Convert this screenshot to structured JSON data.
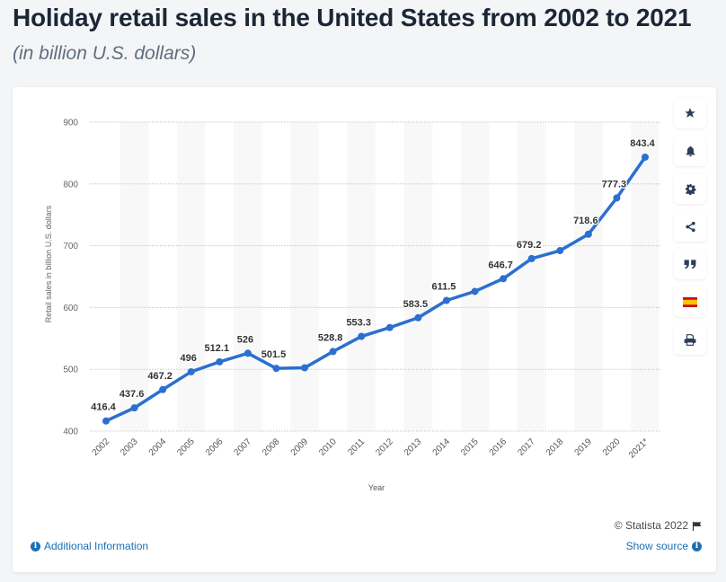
{
  "header": {
    "title": "Holiday retail sales in the United States from 2002 to 2021",
    "subtitle": "(in billion U.S. dollars)"
  },
  "sidebar": {
    "buttons": [
      {
        "icon": "star-icon",
        "label": "Favorite"
      },
      {
        "icon": "bell-icon",
        "label": "Notifications"
      },
      {
        "icon": "gear-icon",
        "label": "Settings"
      },
      {
        "icon": "share-icon",
        "label": "Share"
      },
      {
        "icon": "quote-icon",
        "label": "Cite"
      },
      {
        "icon": "spain-flag-icon",
        "label": "Language"
      },
      {
        "icon": "print-icon",
        "label": "Print"
      }
    ]
  },
  "footer": {
    "copyright": "© Statista 2022",
    "additional_info": "Additional Information",
    "show_source": "Show source"
  },
  "colors": {
    "line": "#2b6fd0",
    "link": "#1b6fb5",
    "title": "#1c2636",
    "icon": "#2d3e5c"
  },
  "chart_data": {
    "type": "line",
    "title": "Holiday retail sales in the United States from 2002 to 2021",
    "subtitle": "(in billion U.S. dollars)",
    "xlabel": "Year",
    "ylabel": "Retail sales in billion U.S. dollars",
    "ylim": [
      400,
      900
    ],
    "yticks": [
      400,
      500,
      600,
      700,
      800,
      900
    ],
    "grid": true,
    "categories": [
      "2002",
      "2003",
      "2004",
      "2005",
      "2006",
      "2007",
      "2008",
      "2009",
      "2010",
      "2011",
      "2012",
      "2013",
      "2014",
      "2015",
      "2016",
      "2017",
      "2018",
      "2019",
      "2020",
      "2021*"
    ],
    "series": [
      {
        "name": "Retail sales",
        "values": [
          416.4,
          437.6,
          467.2,
          496,
          512.1,
          526,
          501.5,
          502.4,
          528.8,
          553.3,
          567.6,
          583.5,
          611.5,
          626.1,
          646.7,
          679.2,
          692.1,
          718.6,
          777.3,
          843.4
        ],
        "labels": [
          "416.4",
          "437.6",
          "467.2",
          "496",
          "512.1",
          "526",
          "501.5",
          "",
          "528.8",
          "553.3",
          "",
          "583.5",
          "611.5",
          "",
          "646.7",
          "679.2",
          "",
          "718.6",
          "777.3",
          "843.4"
        ]
      }
    ]
  }
}
